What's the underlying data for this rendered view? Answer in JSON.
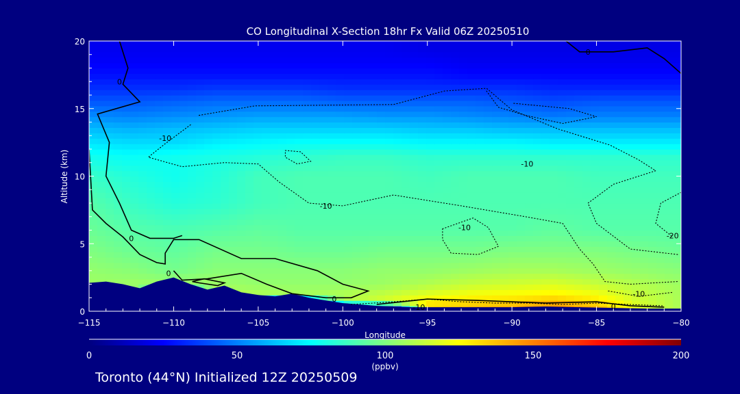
{
  "chart_data": {
    "type": "heatmap",
    "title": "CO Longitudinal X-Section 18hr  Fx Valid 06Z 20250510",
    "xlabel": "Longitude",
    "ylabel": "Altitude (km)",
    "xlim": [
      -115,
      -80
    ],
    "ylim": [
      0,
      20
    ],
    "x_ticks": [
      -115,
      -110,
      -105,
      -100,
      -95,
      -90,
      -85,
      -80
    ],
    "y_ticks": [
      0,
      5,
      10,
      15,
      20
    ],
    "colorbar": {
      "label": "(ppbv)",
      "range": [
        0,
        200
      ],
      "ticks": [
        0,
        50,
        100,
        150,
        200
      ],
      "stops": [
        "#000080",
        "#0000ff",
        "#0080ff",
        "#00ffff",
        "#80ff80",
        "#ffff00",
        "#ff8000",
        "#ff0000",
        "#800000"
      ]
    },
    "field": {
      "altitude_km": [
        0.3,
        0.7,
        1.2,
        2,
        3,
        4.5,
        6,
        8,
        10,
        11.5,
        12.5,
        13.5,
        14.5,
        15.5,
        16.5,
        17.5,
        18.5,
        19.5
      ],
      "longitude": [
        -115,
        -112.5,
        -110,
        -107.5,
        -105,
        -102.5,
        -100,
        -97.5,
        -95,
        -92.5,
        -90,
        -87.5,
        -85,
        -82.5,
        -80
      ],
      "values_ppbv": [
        [
          0,
          0,
          0,
          0,
          0,
          0,
          0,
          0,
          132,
          138,
          142,
          150,
          140,
          118,
          108
        ],
        [
          0,
          0,
          0,
          0,
          0,
          0,
          108,
          118,
          128,
          132,
          134,
          140,
          132,
          116,
          108
        ],
        [
          108,
          108,
          0,
          112,
          110,
          108,
          110,
          114,
          120,
          124,
          126,
          128,
          124,
          114,
          108
        ],
        [
          106,
          106,
          106,
          106,
          104,
          104,
          104,
          106,
          110,
          114,
          116,
          118,
          114,
          110,
          106
        ],
        [
          104,
          102,
          98,
          102,
          102,
          102,
          102,
          104,
          104,
          106,
          108,
          108,
          106,
          104,
          102
        ],
        [
          100,
          96,
          94,
          98,
          98,
          96,
          96,
          98,
          98,
          98,
          100,
          100,
          100,
          98,
          96
        ],
        [
          96,
          92,
          90,
          92,
          94,
          92,
          92,
          92,
          92,
          92,
          92,
          94,
          92,
          92,
          92
        ],
        [
          92,
          86,
          82,
          84,
          88,
          90,
          90,
          90,
          90,
          90,
          90,
          90,
          90,
          90,
          90
        ],
        [
          86,
          82,
          78,
          82,
          88,
          90,
          90,
          90,
          88,
          90,
          90,
          90,
          88,
          88,
          88
        ],
        [
          78,
          76,
          78,
          80,
          82,
          84,
          86,
          86,
          84,
          84,
          84,
          84,
          84,
          84,
          84
        ],
        [
          70,
          68,
          68,
          72,
          74,
          76,
          76,
          76,
          74,
          74,
          74,
          72,
          72,
          72,
          72
        ],
        [
          62,
          60,
          62,
          64,
          66,
          66,
          66,
          66,
          64,
          64,
          62,
          62,
          62,
          62,
          62
        ],
        [
          52,
          50,
          52,
          54,
          56,
          56,
          56,
          54,
          54,
          52,
          50,
          48,
          50,
          50,
          50
        ],
        [
          42,
          42,
          44,
          46,
          46,
          46,
          44,
          44,
          44,
          44,
          42,
          40,
          42,
          42,
          42
        ],
        [
          34,
          34,
          34,
          36,
          36,
          36,
          34,
          34,
          34,
          34,
          34,
          32,
          32,
          32,
          32
        ],
        [
          28,
          28,
          28,
          28,
          28,
          28,
          28,
          28,
          28,
          26,
          26,
          26,
          26,
          26,
          26
        ],
        [
          24,
          24,
          24,
          24,
          24,
          24,
          24,
          24,
          24,
          22,
          22,
          22,
          22,
          22,
          22
        ],
        [
          22,
          22,
          22,
          22,
          22,
          22,
          22,
          22,
          20,
          20,
          20,
          20,
          20,
          20,
          20
        ]
      ]
    },
    "terrain_km": [
      [
        -115,
        2.1
      ],
      [
        -114,
        2.2
      ],
      [
        -113,
        2.0
      ],
      [
        -112,
        1.7
      ],
      [
        -111,
        2.2
      ],
      [
        -110,
        2.5
      ],
      [
        -109,
        2.0
      ],
      [
        -108,
        1.6
      ],
      [
        -107,
        1.9
      ],
      [
        -106,
        1.4
      ],
      [
        -105,
        1.2
      ],
      [
        -104,
        1.1
      ],
      [
        -103,
        1.3
      ],
      [
        -102,
        1.0
      ],
      [
        -101,
        0.8
      ],
      [
        -100,
        0.6
      ],
      [
        -99,
        0.5
      ],
      [
        -98,
        0.4
      ],
      [
        -96,
        0.3
      ],
      [
        -94,
        0.3
      ],
      [
        -92,
        0.3
      ],
      [
        -90,
        0.3
      ],
      [
        -88,
        0.35
      ],
      [
        -86,
        0.3
      ],
      [
        -84,
        0.25
      ],
      [
        -82,
        0.2
      ],
      [
        -80,
        0.2
      ]
    ],
    "contours": [
      {
        "level": "0",
        "points": [
          [
            -115,
            12
          ],
          [
            -114.8,
            7.5
          ],
          [
            -114,
            6.5
          ],
          [
            -113,
            5.5
          ],
          [
            -112,
            4.2
          ],
          [
            -111,
            3.6
          ],
          [
            -110.5,
            3.5
          ],
          [
            -110.5,
            4.3
          ],
          [
            -110,
            5.3
          ],
          [
            -108.5,
            5.3
          ],
          [
            -106,
            3.9
          ],
          [
            -104,
            3.9
          ],
          [
            -101.5,
            3.0
          ],
          [
            -100,
            2.0
          ],
          [
            -98.5,
            1.5
          ],
          [
            -99.5,
            1.0
          ],
          [
            -101,
            1.0
          ],
          [
            -103,
            1.3
          ],
          [
            -104.5,
            2.0
          ],
          [
            -106,
            2.8
          ],
          [
            -108,
            2.4
          ],
          [
            -109.5,
            2.3
          ],
          [
            -110,
            3.0
          ]
        ]
      },
      {
        "level": "0",
        "points": [
          [
            -113.2,
            20
          ],
          [
            -112.7,
            18
          ],
          [
            -113.0,
            16.8
          ],
          [
            -112,
            15.5
          ],
          [
            -114.5,
            14.6
          ],
          [
            -113.8,
            12.5
          ],
          [
            -114,
            10
          ],
          [
            -113.2,
            8
          ],
          [
            -112.5,
            6
          ],
          [
            -111.4,
            5.4
          ],
          [
            -110,
            5.4
          ],
          [
            -109.5,
            5.6
          ]
        ]
      },
      {
        "level": "0",
        "points": [
          [
            -108.5,
            2.1
          ],
          [
            -107.4,
            1.9
          ],
          [
            -107.0,
            2.1
          ],
          [
            -108.2,
            2.4
          ],
          [
            -108.9,
            2.2
          ],
          [
            -108.5,
            2.1
          ]
        ]
      },
      {
        "level": "0",
        "points": [
          [
            -98.0,
            0.5
          ],
          [
            -95,
            0.9
          ],
          [
            -92,
            0.8
          ],
          [
            -88,
            0.6
          ],
          [
            -85,
            0.7
          ],
          [
            -83,
            0.4
          ],
          [
            -81,
            0.3
          ]
        ]
      },
      {
        "level": "0",
        "points": [
          [
            -86.8,
            20
          ],
          [
            -86,
            19.2
          ],
          [
            -84,
            19.2
          ],
          [
            -82,
            19.5
          ],
          [
            -81,
            18.7
          ],
          [
            -80,
            17.6
          ]
        ]
      }
    ],
    "contour_labels": [
      {
        "text": "0",
        "x": -112.5,
        "y": 5.4
      },
      {
        "text": "0",
        "x": -100.5,
        "y": 0.9
      },
      {
        "text": "0",
        "x": -110.3,
        "y": 2.8
      },
      {
        "text": "0",
        "x": -113.2,
        "y": 17.0
      },
      {
        "text": "0",
        "x": -84.0,
        "y": 0.35
      },
      {
        "text": "0",
        "x": -85.5,
        "y": 19.2
      },
      {
        "text": "-10",
        "x": -110.5,
        "y": 12.8
      },
      {
        "text": "-10",
        "x": -89.1,
        "y": 10.9
      },
      {
        "text": "-10",
        "x": -101.0,
        "y": 7.8
      },
      {
        "text": "-10",
        "x": -92.8,
        "y": 6.2
      },
      {
        "text": "-10",
        "x": -95.5,
        "y": 0.3
      },
      {
        "text": "-10",
        "x": -82.5,
        "y": 1.3
      },
      {
        "text": "-20",
        "x": -80.5,
        "y": 5.6
      }
    ],
    "dotted_contours": [
      [
        [
          -109,
          13.8
        ],
        [
          -110.5,
          12.4
        ],
        [
          -111.5,
          11.4
        ],
        [
          -109.5,
          10.7
        ],
        [
          -107,
          11
        ],
        [
          -105,
          10.9
        ],
        [
          -103.8,
          9.6
        ],
        [
          -102,
          8
        ],
        [
          -100,
          7.8
        ],
        [
          -97,
          8.6
        ],
        [
          -93,
          7.8
        ],
        [
          -89.2,
          7
        ],
        [
          -87,
          6.5
        ],
        [
          -86,
          4.6
        ],
        [
          -85.2,
          3.5
        ],
        [
          -84.5,
          2.2
        ],
        [
          -83,
          2
        ],
        [
          -80.2,
          2.2
        ]
      ],
      [
        [
          -108.5,
          14.5
        ],
        [
          -105.2,
          15.2
        ],
        [
          -97,
          15.3
        ],
        [
          -94,
          16.3
        ],
        [
          -91.5,
          16.5
        ],
        [
          -90,
          14.9
        ],
        [
          -87.3,
          13.5
        ],
        [
          -84.2,
          12.3
        ],
        [
          -82.5,
          11.2
        ],
        [
          -81.5,
          10.4
        ],
        [
          -84,
          9.4
        ],
        [
          -85.5,
          8.0
        ],
        [
          -85.0,
          6.5
        ],
        [
          -83.0,
          4.6
        ],
        [
          -80.2,
          4.2
        ]
      ],
      [
        [
          -80.0,
          8.8
        ],
        [
          -81.2,
          8.0
        ],
        [
          -81.5,
          6.5
        ],
        [
          -80.5,
          5.5
        ]
      ],
      [
        [
          -94.1,
          6.1
        ],
        [
          -92.3,
          6.9
        ],
        [
          -91.4,
          6.2
        ],
        [
          -90.8,
          4.8
        ],
        [
          -92.0,
          4.2
        ],
        [
          -93.6,
          4.3
        ],
        [
          -94.1,
          5.3
        ],
        [
          -94.1,
          6.1
        ]
      ],
      [
        [
          -103.4,
          11.9
        ],
        [
          -102.5,
          11.8
        ],
        [
          -101.9,
          11.1
        ],
        [
          -102.7,
          10.9
        ],
        [
          -103.4,
          11.4
        ],
        [
          -103.4,
          11.9
        ]
      ],
      [
        [
          -91.5,
          16.3
        ],
        [
          -90.8,
          15.1
        ],
        [
          -89.2,
          14.5
        ],
        [
          -87.0,
          13.9
        ],
        [
          -85.0,
          14.4
        ],
        [
          -86.6,
          15.0
        ],
        [
          -90.0,
          15.4
        ]
      ],
      [
        [
          -99.5,
          0.5
        ],
        [
          -97,
          0.7
        ],
        [
          -95,
          0.9
        ],
        [
          -93,
          0.7
        ],
        [
          -91,
          0.6
        ],
        [
          -89,
          0.6
        ],
        [
          -87,
          0.5
        ],
        [
          -85,
          0.6
        ],
        [
          -83,
          0.5
        ],
        [
          -81,
          0.4
        ]
      ],
      [
        [
          -84.3,
          1.5
        ],
        [
          -82.5,
          1.1
        ],
        [
          -80.5,
          1.4
        ]
      ]
    ],
    "footer": "Toronto (44°N) Initialized 12Z 20250509"
  }
}
